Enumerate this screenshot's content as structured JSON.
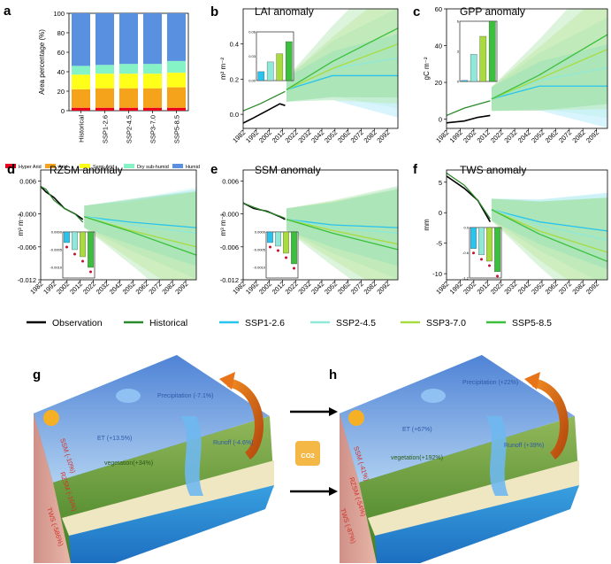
{
  "panel_a": {
    "label": "a",
    "ylabel": "Area percentage (%)",
    "yticks": [
      "0",
      "20",
      "40",
      "60",
      "80",
      "100"
    ],
    "categories": [
      "Historical",
      "SSP1-2.6",
      "SSP2-4.5",
      "SSP3-7.0",
      "SSP5-8.5"
    ],
    "legend": [
      {
        "name": "Hyper Arid",
        "color": "#e8001c"
      },
      {
        "name": "Arid",
        "color": "#f5a31a"
      },
      {
        "name": "Semi-Arid",
        "color": "#ffff1a"
      },
      {
        "name": "Dry sub-humid",
        "color": "#86f3c6"
      },
      {
        "name": "Humid",
        "color": "#5a90e0"
      }
    ]
  },
  "panels": [
    {
      "label": "b",
      "title": "LAI anomaly",
      "ylabel": "m² m⁻²",
      "yticks": [
        "0.0",
        "0.2",
        "0.4"
      ],
      "inset_ticks": [
        "0.00",
        "0.03",
        "0.06"
      ]
    },
    {
      "label": "c",
      "title": "GPP anomaly",
      "ylabel": "gC m⁻²",
      "yticks": [
        "0",
        "20",
        "40",
        "60"
      ],
      "inset_ticks": [
        "0",
        "3",
        "6"
      ]
    },
    {
      "label": "d",
      "title": "RZSM anomaly",
      "ylabel": "m³ m⁻³",
      "yticks": [
        "-0.012",
        "-0.006",
        "0.000",
        "0.006"
      ],
      "inset_ticks": [
        "-0.0010",
        "-0.0005",
        "0.0000"
      ]
    },
    {
      "label": "e",
      "title": "SSM anomaly",
      "ylabel": "m³ m⁻³",
      "yticks": [
        "-0.012",
        "-0.006",
        "0.000",
        "0.006"
      ],
      "inset_ticks": [
        "-0.0010",
        "-0.0005",
        "0.0000"
      ]
    },
    {
      "label": "f",
      "title": "TWS anomaly",
      "ylabel": "mm",
      "yticks": [
        "-10",
        "-5",
        "0",
        "5"
      ],
      "inset_ticks": [
        "-1.2",
        "-0.6",
        "0.0"
      ]
    }
  ],
  "xticks": [
    "1982",
    "1992",
    "2002",
    "2012",
    "2022",
    "2032",
    "2042",
    "2052",
    "2062",
    "2072",
    "2082",
    "2092"
  ],
  "legend": [
    {
      "name": "Observation",
      "color": "#000000"
    },
    {
      "name": "Historical",
      "color": "#2b8a2b"
    },
    {
      "name": "SSP1-2.6",
      "color": "#29c4ee"
    },
    {
      "name": "SSP2-4.5",
      "color": "#8fe8d8"
    },
    {
      "name": "SSP3-7.0",
      "color": "#a8dc3e"
    },
    {
      "name": "SSP5-8.5",
      "color": "#3cbf3c"
    }
  ],
  "scenario_g": {
    "label": "g",
    "precipitation": "Precipitation (-7.1%)",
    "et": "ET (+13.5%)",
    "runoff": "Runoff (-4.6%)",
    "vegetation": "vegetation(+34%)",
    "ssm": "SSM (-10%)",
    "rzsm": "RZSM (-16%)",
    "tws": "TWS (-586%)"
  },
  "scenario_h": {
    "label": "h",
    "precipitation": "Precipitation (+22%)",
    "et": "ET (+67%)",
    "runoff": "Runoff (+39%)",
    "vegetation": "vegetation(+192%)",
    "ssm": "SSM (-41%)",
    "rzsm": "RZSM (-54%)",
    "tws": "TWS (-87%)"
  },
  "co2_label": "CO2",
  "chart_data": [
    {
      "type": "bar",
      "stacked": true,
      "categories": [
        "Historical",
        "SSP1-2.6",
        "SSP2-4.5",
        "SSP3-7.0",
        "SSP5-8.5"
      ],
      "ylabel": "Area percentage (%)",
      "ylim": [
        0,
        100
      ],
      "series": [
        {
          "name": "Hyper Arid",
          "values": [
            3,
            3,
            3,
            3,
            3
          ]
        },
        {
          "name": "Arid",
          "values": [
            19,
            20,
            20,
            20,
            21
          ]
        },
        {
          "name": "Semi-Arid",
          "values": [
            15,
            15,
            15,
            15,
            15
          ]
        },
        {
          "name": "Dry sub-humid",
          "values": [
            9,
            9,
            10,
            10,
            12
          ]
        },
        {
          "name": "Humid",
          "values": [
            54,
            53,
            52,
            52,
            49
          ]
        }
      ]
    },
    {
      "type": "line",
      "title": "LAI anomaly",
      "ylabel": "m² m⁻²",
      "ylim": [
        -0.08,
        0.6
      ],
      "xlim": [
        1982,
        2100
      ],
      "series": [
        {
          "name": "Observation",
          "x": [
            1982,
            1990,
            2000,
            2010,
            2014
          ],
          "y": [
            -0.05,
            -0.02,
            0.02,
            0.06,
            0.05
          ]
        },
        {
          "name": "Historical",
          "x": [
            1982,
            1995,
            2014
          ],
          "y": [
            0.02,
            0.06,
            0.13
          ]
        },
        {
          "name": "SSP1-2.6",
          "x": [
            2015,
            2050,
            2100
          ],
          "y": [
            0.14,
            0.22,
            0.22
          ]
        },
        {
          "name": "SSP2-4.5",
          "x": [
            2015,
            2050,
            2100
          ],
          "y": [
            0.14,
            0.26,
            0.32
          ]
        },
        {
          "name": "SSP3-7.0",
          "x": [
            2015,
            2050,
            2100
          ],
          "y": [
            0.14,
            0.26,
            0.4
          ]
        },
        {
          "name": "SSP5-8.5",
          "x": [
            2015,
            2050,
            2100
          ],
          "y": [
            0.14,
            0.3,
            0.49
          ]
        }
      ],
      "inset": {
        "ylim": [
          0,
          0.06
        ],
        "values": [
          0.011,
          0.023,
          0.033,
          0.048
        ]
      }
    },
    {
      "type": "line",
      "title": "GPP anomaly",
      "ylabel": "gC m⁻²",
      "ylim": [
        -5,
        60
      ],
      "xlim": [
        1982,
        2100
      ],
      "series": [
        {
          "name": "Observation",
          "x": [
            1982,
            1995,
            2005,
            2014
          ],
          "y": [
            -2,
            -1,
            1,
            2
          ]
        },
        {
          "name": "Historical",
          "x": [
            1982,
            1995,
            2014
          ],
          "y": [
            2,
            6,
            10
          ]
        },
        {
          "name": "SSP1-2.6",
          "x": [
            2015,
            2050,
            2100
          ],
          "y": [
            11,
            18,
            18
          ]
        },
        {
          "name": "SSP2-4.5",
          "x": [
            2015,
            2050,
            2100
          ],
          "y": [
            11,
            21,
            28
          ]
        },
        {
          "name": "SSP3-7.0",
          "x": [
            2015,
            2050,
            2100
          ],
          "y": [
            11,
            22,
            38
          ]
        },
        {
          "name": "SSP5-8.5",
          "x": [
            2015,
            2050,
            2100
          ],
          "y": [
            11,
            24,
            46
          ]
        }
      ],
      "inset": {
        "ylim": [
          0,
          6
        ],
        "values": [
          0.1,
          2.7,
          4.5,
          6.0
        ]
      }
    },
    {
      "type": "line",
      "title": "RZSM anomaly",
      "ylabel": "m³ m⁻³",
      "ylim": [
        -0.012,
        0.008
      ],
      "xlim": [
        1982,
        2100
      ],
      "series": [
        {
          "name": "Observation",
          "x": [
            1982,
            1986,
            1992,
            2000,
            2008,
            2014
          ],
          "y": [
            0.005,
            0.004,
            0.003,
            0.001,
            0.0,
            -0.001
          ]
        },
        {
          "name": "Historical",
          "x": [
            1982,
            1986,
            1992,
            2000,
            2008,
            2014
          ],
          "y": [
            0.005,
            0.0045,
            0.0025,
            0.001,
            0.0,
            -0.0015
          ]
        },
        {
          "name": "SSP1-2.6",
          "x": [
            2015,
            2050,
            2100
          ],
          "y": [
            -0.0005,
            -0.0015,
            -0.0025
          ]
        },
        {
          "name": "SSP2-4.5",
          "x": [
            2015,
            2050,
            2100
          ],
          "y": [
            -0.0005,
            -0.002,
            -0.0035
          ]
        },
        {
          "name": "SSP3-7.0",
          "x": [
            2015,
            2050,
            2100
          ],
          "y": [
            -0.0005,
            -0.003,
            -0.006
          ]
        },
        {
          "name": "SSP5-8.5",
          "x": [
            2015,
            2050,
            2100
          ],
          "y": [
            -0.0005,
            -0.0032,
            -0.0075
          ]
        }
      ],
      "inset": {
        "ylim": [
          -0.0013,
          0.0
        ],
        "values": [
          -0.0003,
          -0.0005,
          -0.0007,
          -0.001
        ]
      }
    },
    {
      "type": "line",
      "title": "SSM anomaly",
      "ylabel": "m³ m⁻³",
      "ylim": [
        -0.012,
        0.008
      ],
      "xlim": [
        1982,
        2100
      ],
      "series": [
        {
          "name": "Observation",
          "x": [
            1982,
            1990,
            2000,
            2010,
            2014
          ],
          "y": [
            0.002,
            0.001,
            0.0005,
            -0.0005,
            -0.001
          ]
        },
        {
          "name": "Historical",
          "x": [
            1982,
            1990,
            2000,
            2010,
            2014
          ],
          "y": [
            0.002,
            0.0012,
            0.0004,
            -0.0004,
            -0.0008
          ]
        },
        {
          "name": "SSP1-2.6",
          "x": [
            2015,
            2050,
            2100
          ],
          "y": [
            -0.001,
            -0.002,
            -0.0025
          ]
        },
        {
          "name": "SSP2-4.5",
          "x": [
            2015,
            2050,
            2100
          ],
          "y": [
            -0.001,
            -0.0025,
            -0.0035
          ]
        },
        {
          "name": "SSP3-7.0",
          "x": [
            2015,
            2050,
            2100
          ],
          "y": [
            -0.001,
            -0.003,
            -0.0055
          ]
        },
        {
          "name": "SSP5-8.5",
          "x": [
            2015,
            2050,
            2100
          ],
          "y": [
            -0.001,
            -0.0035,
            -0.0065
          ]
        }
      ],
      "inset": {
        "ylim": [
          -0.0013,
          0.0
        ],
        "values": [
          -0.0003,
          -0.0004,
          -0.0006,
          -0.0009
        ]
      }
    },
    {
      "type": "line",
      "title": "TWS anomaly",
      "ylabel": "mm",
      "ylim": [
        -11,
        7
      ],
      "xlim": [
        1982,
        2100
      ],
      "series": [
        {
          "name": "Observation",
          "x": [
            1982,
            1995,
            2005,
            2014
          ],
          "y": [
            6,
            4,
            2,
            -1.5
          ]
        },
        {
          "name": "Historical",
          "x": [
            1982,
            1995,
            2005,
            2014
          ],
          "y": [
            6.5,
            4.5,
            2,
            -1
          ]
        },
        {
          "name": "SSP1-2.6",
          "x": [
            2015,
            2050,
            2100
          ],
          "y": [
            0.5,
            -1.5,
            -3
          ]
        },
        {
          "name": "SSP2-4.5",
          "x": [
            2015,
            2050,
            2100
          ],
          "y": [
            0.5,
            -2,
            -4.5
          ]
        },
        {
          "name": "SSP3-7.0",
          "x": [
            2015,
            2050,
            2100
          ],
          "y": [
            0.5,
            -3,
            -6.5
          ]
        },
        {
          "name": "SSP5-8.5",
          "x": [
            2015,
            2050,
            2100
          ],
          "y": [
            0.5,
            -3.5,
            -8
          ]
        }
      ],
      "inset": {
        "ylim": [
          -1.2,
          0
        ],
        "values": [
          -0.5,
          -0.65,
          -0.8,
          -1.05
        ]
      }
    }
  ]
}
